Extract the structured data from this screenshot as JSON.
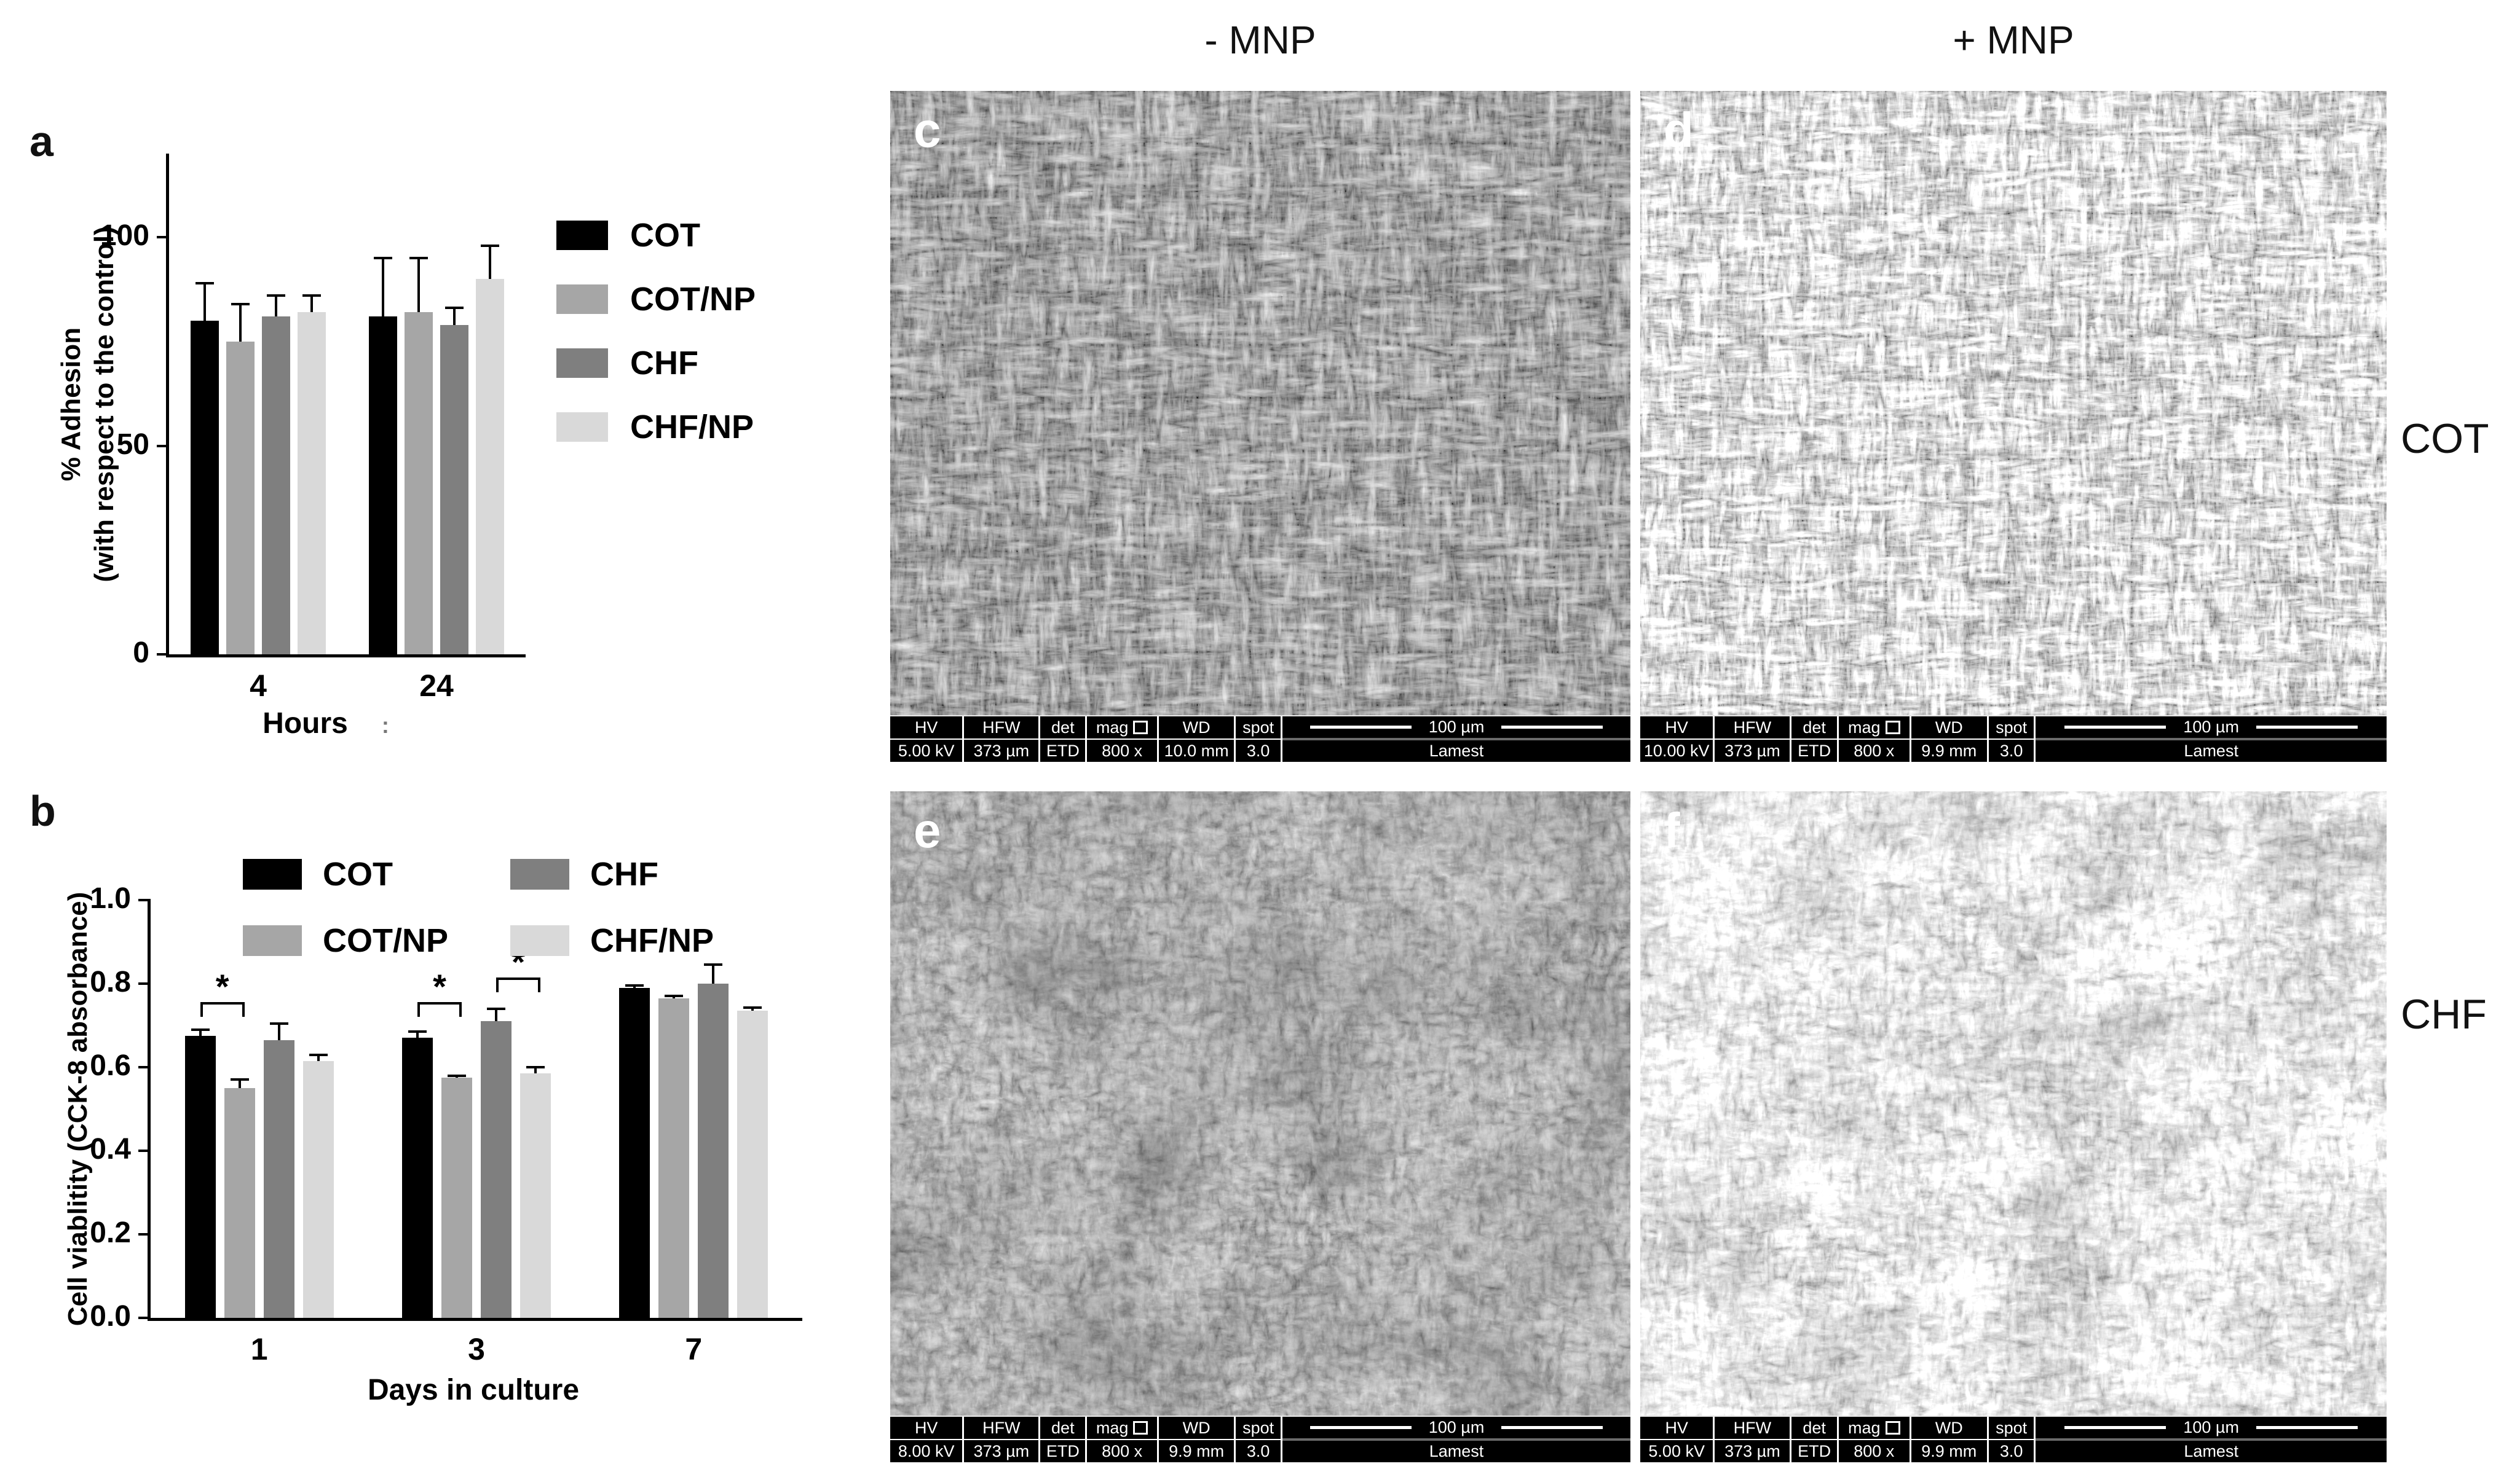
{
  "panels": {
    "a": {
      "letter": "a"
    },
    "b": {
      "letter": "b"
    }
  },
  "chart_data": [
    {
      "type": "bar",
      "panel": "a",
      "categories": [
        "4",
        "24"
      ],
      "series": [
        {
          "name": "COT",
          "color": "#000000",
          "values": [
            80,
            81
          ],
          "errors": [
            9,
            14
          ]
        },
        {
          "name": "COT/NP",
          "color": "#a6a6a6",
          "values": [
            75,
            82
          ],
          "errors": [
            9,
            13
          ]
        },
        {
          "name": "CHF",
          "color": "#7f7f7f",
          "values": [
            81,
            79
          ],
          "errors": [
            5,
            4
          ]
        },
        {
          "name": "CHF/NP",
          "color": "#d9d9d9",
          "values": [
            82,
            90
          ],
          "errors": [
            4,
            8
          ]
        }
      ],
      "ylabel_line1": "% Adhesion",
      "ylabel_line2": "(with respect to the control)",
      "xlabel": "Hours",
      "xlabel_artifact": ":",
      "yticks": [
        0,
        50,
        100
      ],
      "ytick_labels": [
        "0",
        "50",
        "100"
      ],
      "ylim": [
        0,
        120
      ],
      "legend_position": "right",
      "grid": false
    },
    {
      "type": "bar",
      "panel": "b",
      "categories": [
        "1",
        "3",
        "7"
      ],
      "series": [
        {
          "name": "COT",
          "color": "#000000",
          "values": [
            0.675,
            0.67,
            0.79
          ],
          "errors": [
            0.015,
            0.015,
            0.005
          ]
        },
        {
          "name": "COT/NP",
          "color": "#a6a6a6",
          "values": [
            0.55,
            0.575,
            0.765
          ],
          "errors": [
            0.02,
            0.005,
            0.005
          ]
        },
        {
          "name": "CHF",
          "color": "#7f7f7f",
          "values": [
            0.665,
            0.71,
            0.8
          ],
          "errors": [
            0.04,
            0.03,
            0.045
          ]
        },
        {
          "name": "CHF/NP",
          "color": "#d9d9d9",
          "values": [
            0.615,
            0.585,
            0.735
          ],
          "errors": [
            0.015,
            0.015,
            0.008
          ]
        }
      ],
      "ylabel": "Cell viablitity (CCK-8 absorbance)",
      "xlabel": "Days in culture",
      "yticks": [
        0,
        0.2,
        0.4,
        0.6,
        0.8,
        1.0
      ],
      "ytick_labels": [
        "0.0",
        "0.2",
        "0.4",
        "0.6",
        "0.8",
        "1.0"
      ],
      "ylim": [
        0,
        1.0
      ],
      "legend_position": "top",
      "grid": false,
      "significance": [
        {
          "category_index": 0,
          "bars": [
            0,
            1
          ],
          "label": "*",
          "y": 0.72
        },
        {
          "category_index": 1,
          "bars": [
            0,
            1
          ],
          "label": "*",
          "y": 0.72
        },
        {
          "category_index": 1,
          "bars": [
            2,
            3
          ],
          "label": "*",
          "y": 0.78
        }
      ]
    }
  ],
  "sem": {
    "col_headers": [
      "- MNP",
      "+ MNP"
    ],
    "row_labels": [
      "COT",
      "CHF"
    ],
    "meta_headers": {
      "hv": "HV",
      "hfw": "HFW",
      "det": "det",
      "mag": "mag",
      "wd": "WD",
      "spot": "spot"
    },
    "panels": [
      {
        "letter": "c",
        "hv": "5.00 kV",
        "hfw": "373 µm",
        "det": "ETD",
        "mag": "800 x",
        "wd": "10.0 mm",
        "spot": "3.0",
        "scale": "100 µm",
        "label": "Lamest"
      },
      {
        "letter": "d",
        "hv": "10.00 kV",
        "hfw": "373 µm",
        "det": "ETD",
        "mag": "800 x",
        "wd": "9.9 mm",
        "spot": "3.0",
        "scale": "100 µm",
        "label": "Lamest"
      },
      {
        "letter": "e",
        "hv": "8.00 kV",
        "hfw": "373 µm",
        "det": "ETD",
        "mag": "800 x",
        "wd": "9.9 mm",
        "spot": "3.0",
        "scale": "100 µm",
        "label": "Lamest"
      },
      {
        "letter": "f",
        "hv": "5.00 kV",
        "hfw": "373 µm",
        "det": "ETD",
        "mag": "800 x",
        "wd": "9.9 mm",
        "spot": "3.0",
        "scale": "100 µm",
        "label": "Lamest"
      }
    ]
  }
}
